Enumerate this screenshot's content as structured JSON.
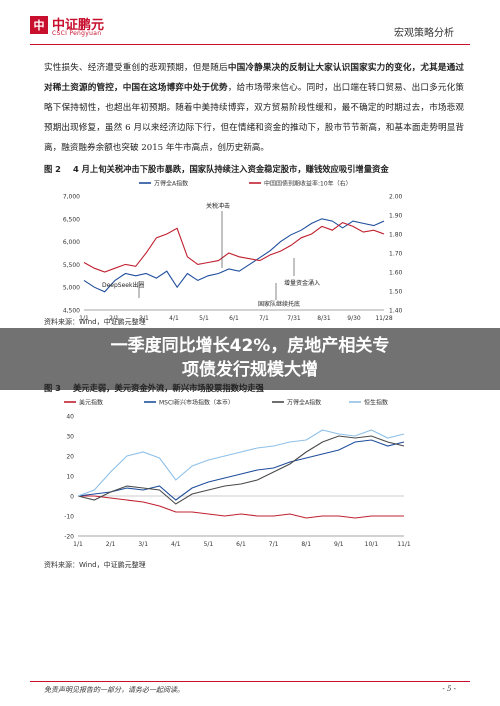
{
  "header": {
    "logo_glyph": "中",
    "logo_cn": "中证鹏元",
    "logo_en": "CSCI Pengyuan",
    "report_type": "宏观策略分析"
  },
  "paragraph": {
    "p1": "实性损失、经济遭受重创的悲观预期，但是随后",
    "b1": "中国冷静果决的反制让大家认识国家实力的变化，尤其是通过对稀土资源的管控，中国在这场博弈中处于优势",
    "p2": "，给市场带来信心。同时，出口端在转口贸易、出口多元化策略下保持韧性，也超出年初预期。随着中美持续博弈，双方贸易阶段性缓和，最不确定的时期过去，市场悲观预期出现修复，虽然 6 月以来经济边际下行，但在情绪和资金的推动下，股市节节新高，和基本面走势明显背离，融资融券余额也突破 2015 年牛市高点，创历史新高。"
  },
  "figure2": {
    "num": "图 2",
    "title": "4 月上旬关税冲击下股市暴跌，国家队持续注入资金稳定股市，赚钱效应吸引增量资金",
    "source": "资料来源：Wind，中证鹏元整理"
  },
  "figure3": {
    "num": "图 3",
    "title": "美元走弱，美元资金外流，新兴市场股票指数均走强",
    "source": "资料来源：Wind，中证鹏元整理"
  },
  "overlay": {
    "line1": "一季度同比增长42%，房地产相关专",
    "line2": "项债发行规模大增"
  },
  "footer": {
    "left": "免责声明见报告的一部分，请务必一起阅读。",
    "right": "- 5 -"
  },
  "chart_data": [
    {
      "type": "line",
      "title": "4 月上旬关税冲击下股市暴跌，国家队持续注入资金稳定股市，赚钱效应吸引增量资金",
      "x_labels": [
        "1/1",
        "2/1",
        "3/1",
        "4/1",
        "5/1",
        "6/1",
        "7/1",
        "7/31",
        "8/31",
        "9/30",
        "11/28"
      ],
      "ylim_left": [
        4500,
        7000
      ],
      "yticks_left": [
        "4,500",
        "5,000",
        "5,500",
        "6,000",
        "6,500",
        "7,000"
      ],
      "ylim_right": [
        1.4,
        2.0
      ],
      "yticks_right": [
        "1.40",
        "1.50",
        "1.60",
        "1.70",
        "1.80",
        "1.90",
        "2.00"
      ],
      "series": [
        {
          "name": "万得全A指数",
          "axis": "left",
          "color": "#1f4e9c",
          "values": [
            5150,
            5000,
            4900,
            5150,
            5300,
            5250,
            5300,
            5200,
            5350,
            5000,
            5300,
            5150,
            5250,
            5300,
            5400,
            5350,
            5500,
            5650,
            5800,
            6000,
            6150,
            6250,
            6400,
            6500,
            6450,
            6300,
            6450,
            6400,
            6350,
            6450
          ]
        },
        {
          "name": "中国国债到期收益率:10年（右）",
          "axis": "right",
          "color": "#c0202f",
          "values": [
            1.65,
            1.62,
            1.6,
            1.62,
            1.64,
            1.63,
            1.7,
            1.78,
            1.8,
            1.83,
            1.68,
            1.64,
            1.65,
            1.66,
            1.7,
            1.68,
            1.67,
            1.66,
            1.69,
            1.71,
            1.74,
            1.78,
            1.8,
            1.84,
            1.82,
            1.86,
            1.84,
            1.81,
            1.82,
            1.8
          ]
        }
      ],
      "annotations": [
        "DeepSeek出圈",
        "关税冲击",
        "增量资金涌入",
        "国家队继续托底"
      ]
    },
    {
      "type": "line",
      "title": "美元走弱，美元资金外流，新兴市场股票指数均走强",
      "x_labels": [
        "1/1",
        "2/1",
        "3/1",
        "4/1",
        "5/1",
        "6/1",
        "7/1",
        "8/1",
        "9/1",
        "10/1",
        "11/1"
      ],
      "ylim": [
        -20,
        40
      ],
      "yticks": [
        "-20",
        "-10",
        "0",
        "10",
        "20",
        "30",
        "40"
      ],
      "series": [
        {
          "name": "美元指数",
          "color": "#c0202f",
          "values": [
            0,
            0,
            -1,
            -2,
            -3,
            -5,
            -8,
            -8,
            -9,
            -10,
            -9,
            -10,
            -10,
            -9,
            -11,
            -10,
            -10,
            -11,
            -10,
            -10,
            -10
          ]
        },
        {
          "name": "MSCI新兴市场指数（本币）",
          "color": "#1f4e9c",
          "values": [
            0,
            1,
            2,
            4,
            3,
            5,
            -2,
            4,
            7,
            9,
            11,
            13,
            14,
            17,
            19,
            21,
            23,
            27,
            28,
            25,
            27
          ]
        },
        {
          "name": "万得全A指数",
          "color": "#4a4a4a",
          "values": [
            0,
            -2,
            2,
            5,
            4,
            3,
            -4,
            1,
            3,
            5,
            6,
            8,
            12,
            16,
            22,
            27,
            30,
            29,
            30,
            27,
            25
          ]
        },
        {
          "name": "恒生指数",
          "color": "#8fc0e8",
          "values": [
            0,
            3,
            12,
            20,
            22,
            19,
            8,
            15,
            18,
            20,
            22,
            24,
            25,
            27,
            28,
            33,
            31,
            30,
            33,
            29,
            31
          ]
        }
      ]
    }
  ]
}
